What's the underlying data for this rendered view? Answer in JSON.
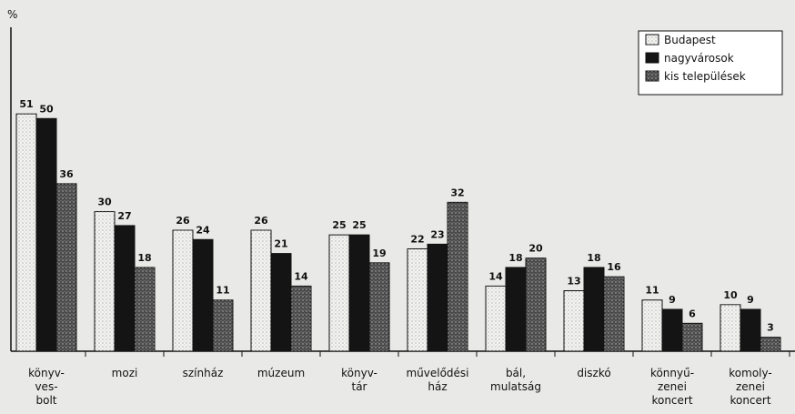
{
  "chart_data": {
    "type": "bar",
    "y_label": "%",
    "categories": [
      "könyv-\nves-\nbolt",
      "mozi",
      "színház",
      "múzeum",
      "könyv-\ntár",
      "művelődési\nház",
      "bál,\nmulatság",
      "diszkó",
      "könnyű-\nzenei\nkoncert",
      "komoly-\nzenei\nkoncert"
    ],
    "series": [
      {
        "name": "Budapest",
        "color": "#f4f4f2",
        "values": [
          51,
          30,
          26,
          26,
          25,
          22,
          14,
          13,
          11,
          10
        ]
      },
      {
        "name": "nagyvárosok",
        "color": "#141414",
        "values": [
          50,
          27,
          24,
          21,
          25,
          23,
          18,
          18,
          9,
          9
        ]
      },
      {
        "name": "kis települések",
        "color": "#4a4a4a",
        "values": [
          36,
          18,
          11,
          14,
          19,
          32,
          20,
          16,
          6,
          3
        ]
      }
    ],
    "ylim": [
      0,
      70
    ],
    "legend": "upper right"
  }
}
